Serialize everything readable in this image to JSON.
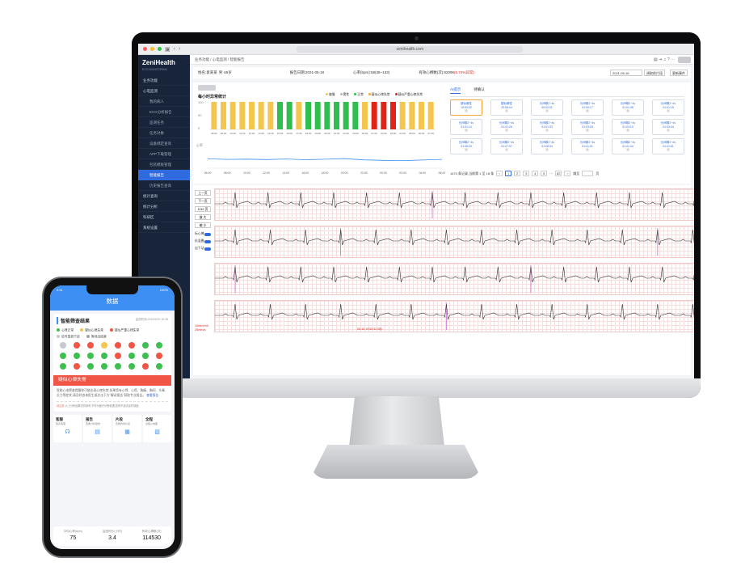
{
  "browser": {
    "url": "zenihealth.com"
  },
  "sidebar": {
    "brand": "ZeniHealth",
    "brand_sub": "ECG MONITORING",
    "items": [
      {
        "label": "业务功能"
      },
      {
        "label": "心电监测"
      },
      {
        "label": "我的病人"
      },
      {
        "label": "ECG分析报告"
      },
      {
        "label": "监测任务"
      },
      {
        "label": "任务对象"
      },
      {
        "label": "设备绑定查询"
      },
      {
        "label": "APP下载管理"
      },
      {
        "label": "包装模板管理"
      },
      {
        "label": "智能报告"
      },
      {
        "label": "历史报告查询"
      },
      {
        "label": "统计查询"
      },
      {
        "label": "统计分析"
      },
      {
        "label": "科研区"
      },
      {
        "label": "系统设置"
      }
    ]
  },
  "breadcrumb": "业务功能 / 心电监测 / 智能报告",
  "patient": {
    "name": "姓名:袁某某",
    "gender": "男",
    "age": "65岁",
    "report_date": "报告日期:2021-05-18",
    "heart_rate": "心率(bpm):58(38~133)",
    "valid": "有效心搏数(次):62096",
    "abnormal": "(5.74%异常)",
    "date_value": "2021-05-16",
    "btn_prev": "调取前片段",
    "btn_more": "更新事件"
  },
  "chart": {
    "title": "每小时异常统计",
    "legend": [
      "偏慢",
      "窦性",
      "正常",
      "疑似心律失常",
      "疑似严重心律失常"
    ],
    "legend_colors": [
      "#f3c74f",
      "#bbbbbb",
      "#2fbf4f",
      "#f2a533",
      "#e2231a"
    ],
    "tab_ai": "AI提示",
    "tab_pending": "待确认"
  },
  "chart_data": [
    {
      "type": "bar",
      "title": "每小时异常统计",
      "categories": [
        "08:00",
        "09:00",
        "10:00",
        "11:00",
        "12:00",
        "13:00",
        "14:00",
        "15:00",
        "16:00",
        "17:00",
        "18:00",
        "19:00",
        "20:00",
        "21:00",
        "22:00",
        "23:00",
        "00:00",
        "01:00",
        "02:00",
        "03:00",
        "04:00",
        "05:00",
        "06:00",
        "07:00"
      ],
      "values": [
        100,
        100,
        100,
        100,
        100,
        100,
        100,
        100,
        100,
        100,
        100,
        100,
        100,
        100,
        100,
        100,
        100,
        100,
        100,
        100,
        100,
        100,
        100,
        100
      ],
      "status": [
        "bradycardia",
        "bradycardia",
        "bradycardia",
        "bradycardia",
        "bradycardia",
        "bradycardia",
        "bradycardia",
        "normal",
        "normal",
        "bradycardia",
        "normal",
        "normal",
        "normal",
        "normal",
        "normal",
        "normal",
        "bradycardia",
        "severe",
        "severe",
        "severe",
        "bradycardia",
        "bradycardia",
        "bradycardia",
        "bradycardia"
      ],
      "ylim": [
        0,
        100
      ]
    },
    {
      "type": "line",
      "ylabel": "心率",
      "x": [
        "06:00",
        "08:00",
        "10:00",
        "12:00",
        "14:00",
        "16:00",
        "18:00",
        "20:00",
        "22:00",
        "00:00",
        "02:00",
        "04:00",
        "06:00"
      ],
      "values": [
        62,
        58,
        60,
        57,
        61,
        56,
        59,
        63,
        55,
        52,
        50,
        54,
        58
      ],
      "ylim": [
        0,
        160
      ]
    }
  ],
  "events": [
    {
      "type": "疑似窦性",
      "time": "19:53:32"
    },
    {
      "type": "疑似窦性",
      "time": "20:58:04"
    },
    {
      "type": "长间歇2~4s",
      "time": "00:00:31"
    },
    {
      "type": "长间歇2~4s",
      "time": "01:00:17"
    },
    {
      "type": "长间歇2~4s",
      "time": "01:01:08"
    },
    {
      "type": "长间歇2~4s",
      "time": "01:01:15"
    },
    {
      "type": "长间歇2~4s",
      "time": "01:01:14"
    },
    {
      "type": "长间歇2~4s",
      "time": "01:01:26"
    },
    {
      "type": "长间歇2~4s",
      "time": "01:01:33"
    },
    {
      "type": "长间歇2~4s",
      "time": "01:03:18"
    },
    {
      "type": "长间歇2~4s",
      "time": "01:03:10"
    },
    {
      "type": "长间歇2~4s",
      "time": "01:03:44"
    },
    {
      "type": "长间歇2~4s",
      "time": "01:06:33"
    },
    {
      "type": "长间歇2~4s",
      "time": "01:07:07"
    },
    {
      "type": "长间歇2~4s",
      "time": "01:08:34"
    },
    {
      "type": "长间歇2~4s",
      "time": "01:41:01"
    },
    {
      "type": "长间歇2~4s",
      "time": "01:41:44"
    },
    {
      "type": "长间歇2~4s",
      "time": "01:41:51"
    }
  ],
  "pager": {
    "summary": "1474 条记录,当前第 1 至 18 条",
    "pages": [
      "1",
      "2",
      "3",
      "4",
      "5",
      "···",
      "82"
    ],
    "goto": "跳至",
    "page_unit": "页"
  },
  "ecg_controls": {
    "prev": "上一页",
    "next": "下一页",
    "page": "1112",
    "page_unit": "页",
    "zoom_in": "放 大",
    "zoom_out": "缩 小",
    "toggles": [
      "标心搏",
      "抗混叠",
      "自下动"
    ],
    "speed_1": "10mm/mV",
    "speed_2": "25mm/s",
    "marker_time": "05-16 19:53:32.0标"
  },
  "phone": {
    "status_time": "9:41",
    "status_battery": "100%",
    "header": "数据",
    "card_title": "智能筛查结果",
    "card_time": "监测时间:2019/5/20 16:38",
    "legend": [
      "心律正常",
      "疑似心律失常",
      "疑似严重心律失常",
      "信号受到干扰",
      "等待出结果"
    ],
    "legend_colors": [
      "#3fbf4f",
      "#f3c74f",
      "#f05545",
      "#c5c8cf",
      "#9fa3aa"
    ],
    "alert_title": "疑似心律失常",
    "alert_desc": "智能心电筛查提醒你可能出现心律失常,如果您有心悸、心慌、胸痛、胸闷、头晕、乏力等症状,请及时咨询医生或点击下方\"解读报告\"获取专业报告。",
    "alert_link": "查看报告",
    "note_tag": "请注意:",
    "note_text": "以上分析结果仅供参考,不作为医疗诊断依据,如有不适请及时就医。",
    "tiles": [
      {
        "title": "客服",
        "sub": "联系客服"
      },
      {
        "title": "报告",
        "sub": "查看分析报告"
      },
      {
        "title": "片段",
        "sub": "查看异常片段"
      },
      {
        "title": "全程",
        "sub": "全程心电图"
      }
    ],
    "stats": [
      {
        "label": "平均心率(bpm)",
        "value": "75"
      },
      {
        "label": "监测时长(小时)",
        "value": "3.4"
      },
      {
        "label": "有效心搏数(次)",
        "value": "114530"
      }
    ]
  }
}
